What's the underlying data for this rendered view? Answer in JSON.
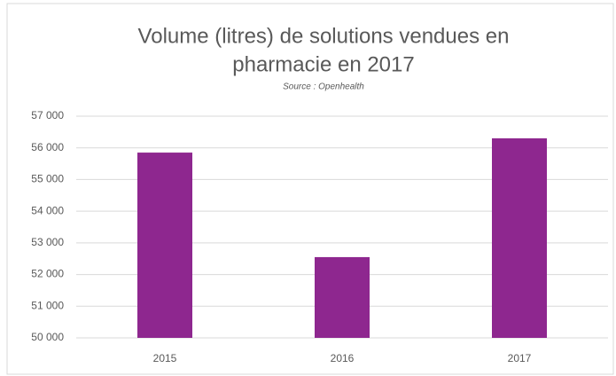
{
  "chart_data": {
    "type": "bar",
    "title": [
      "Volume (litres) de solutions vendues en",
      "pharmacie en 2017"
    ],
    "subtitle": "Source : Openhealth",
    "categories": [
      "2015",
      "2016",
      "2017"
    ],
    "values": [
      55850,
      52550,
      56300
    ],
    "color": "#8e278f",
    "ylim": [
      50000,
      57000
    ],
    "yticks": [
      {
        "value": 50000,
        "label": "50 000"
      },
      {
        "value": 51000,
        "label": "51 000"
      },
      {
        "value": 52000,
        "label": "52 000"
      },
      {
        "value": 53000,
        "label": "53 000"
      },
      {
        "value": 54000,
        "label": "54 000"
      },
      {
        "value": 55000,
        "label": "55 000"
      },
      {
        "value": 56000,
        "label": "56 000"
      },
      {
        "value": 57000,
        "label": "57 000"
      }
    ],
    "grid": true
  }
}
